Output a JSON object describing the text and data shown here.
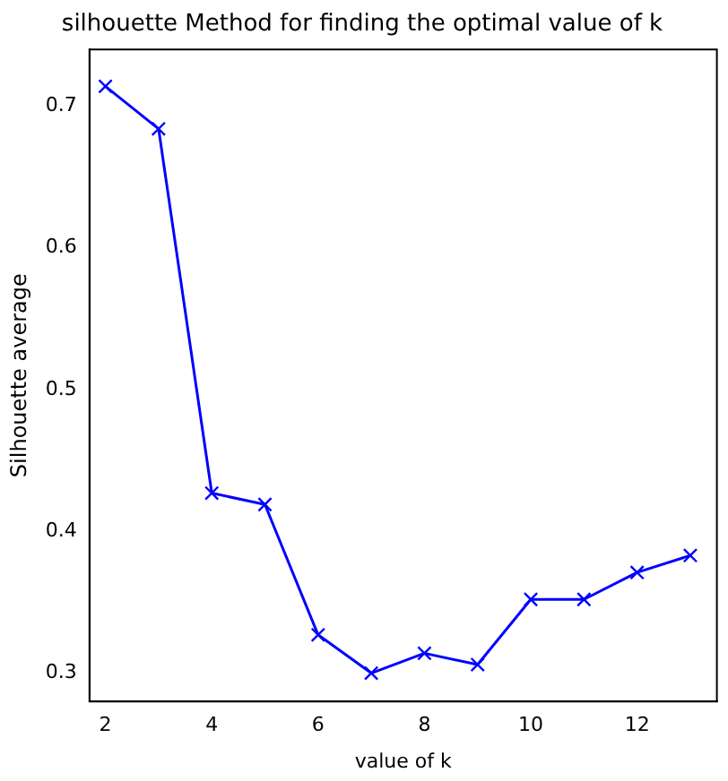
{
  "chart_data": {
    "type": "line",
    "title": "silhouette Method for finding the optimal value of k",
    "xlabel": "value of k",
    "ylabel": "Silhouette average",
    "x": [
      2,
      3,
      4,
      5,
      6,
      7,
      8,
      9,
      10,
      11,
      12,
      13
    ],
    "series": [
      {
        "color": "#0000ff",
        "values": [
          0.714,
          0.684,
          0.427,
          0.419,
          0.327,
          0.3,
          0.314,
          0.306,
          0.352,
          0.352,
          0.371,
          0.383
        ]
      }
    ],
    "xlim": [
      1.7,
      13.5
    ],
    "xticks": [
      2,
      4,
      6,
      8,
      10,
      12
    ],
    "ylim": [
      0.28,
      0.74
    ],
    "yticks": [
      0.3,
      0.4,
      0.5,
      0.6,
      0.7
    ],
    "grid": false,
    "legend": false,
    "marker": "cross",
    "line_style": "solid"
  }
}
